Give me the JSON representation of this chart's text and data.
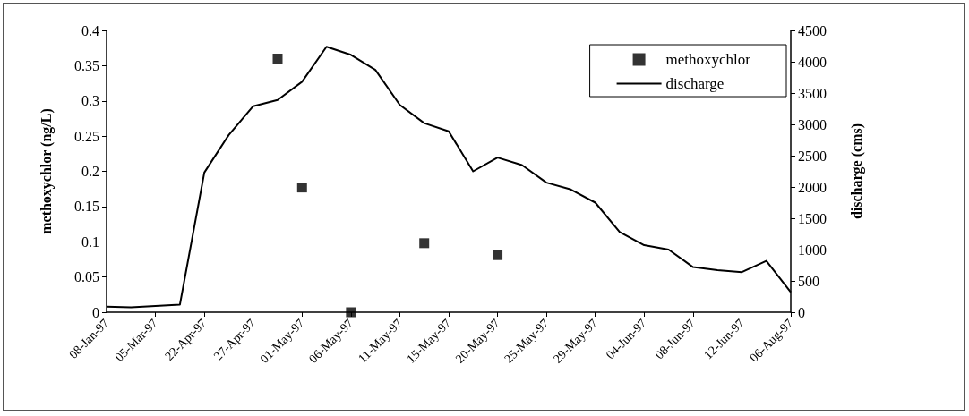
{
  "chart_data": {
    "type": "line",
    "ylabel": "methoxychlor (ng/L)",
    "y2label": "discharge (cms)",
    "categories": [
      "08-Jan-97",
      null,
      "05-Mar-97",
      null,
      "22-Apr-97",
      null,
      "27-Apr-97",
      null,
      "01-May-97",
      null,
      "06-May-97",
      null,
      "11-May-97",
      null,
      "15-May-97",
      null,
      "20-May-97",
      null,
      "25-May-97",
      null,
      "29-May-97",
      null,
      "04-Jun-97",
      null,
      "08-Jun-97",
      null,
      "12-Jun-97",
      null,
      "06-Aug-97"
    ],
    "series": [
      {
        "name": "methoxychlor",
        "type": "scatter",
        "marker": "square",
        "color": "#000000",
        "values": [
          null,
          null,
          null,
          null,
          null,
          null,
          null,
          0.36,
          0.177,
          null,
          0,
          null,
          null,
          0.098,
          null,
          null,
          0.081,
          null,
          null,
          null,
          null,
          null,
          null,
          null,
          null,
          null,
          null,
          null,
          null
        ]
      },
      {
        "name": "discharge",
        "axis": "y2",
        "marker": "none",
        "line_style": "solid",
        "color": "#000000",
        "values": [
          90,
          80,
          100,
          120,
          2230,
          2830,
          3290,
          3390,
          3680,
          4240,
          4110,
          3870,
          3310,
          3020,
          2890,
          2250,
          2470,
          2350,
          2070,
          1960,
          1750,
          1280,
          1070,
          1000,
          720,
          670,
          640,
          820,
          320
        ]
      }
    ],
    "ylim": [
      0,
      0.4
    ],
    "yticks": [
      0,
      0.05,
      0.1,
      0.15,
      0.2,
      0.25,
      0.3,
      0.35,
      0.4
    ],
    "y2lim": [
      0,
      4500
    ],
    "y2ticks": [
      0,
      500,
      1000,
      1500,
      2000,
      2500,
      3000,
      3500,
      4000,
      4500
    ],
    "grid": false,
    "legend": "top right"
  }
}
